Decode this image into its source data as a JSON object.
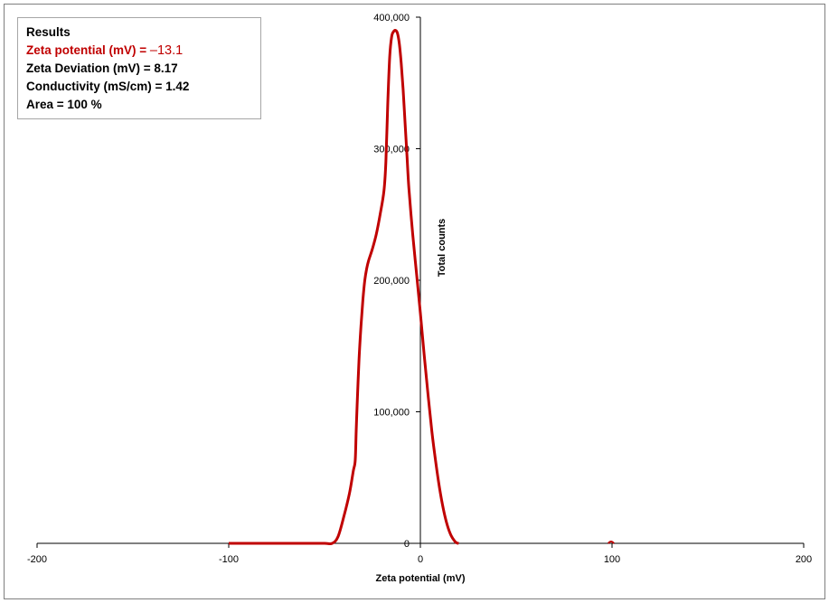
{
  "results": {
    "heading": "Results",
    "zeta_label": "Zeta potential (mV) = ",
    "zeta_value": "–13.1",
    "deviation": "Zeta Deviation (mV) = 8.17",
    "conductivity": "Conductivity (mS/cm) = 1.42",
    "area": "Area = 100 %"
  },
  "colors": {
    "series": "#c00000",
    "axis": "#000000"
  },
  "chart_data": {
    "type": "line",
    "title": "",
    "xlabel": "Zeta potential (mV)",
    "ylabel": "Total counts",
    "xlim": [
      -200,
      200
    ],
    "ylim": [
      0,
      400000
    ],
    "x_ticks": [
      -200,
      -100,
      0,
      100,
      200
    ],
    "x_tick_labels": [
      "-200",
      "-100",
      "0",
      "100",
      "200"
    ],
    "y_ticks": [
      0,
      100000,
      200000,
      300000,
      400000
    ],
    "y_tick_labels": [
      "0",
      "100,000",
      "200,000",
      "300,000",
      "400,000"
    ],
    "grid": false,
    "legend": "none",
    "series": [
      {
        "x": [
          -100,
          -80,
          -60,
          -50,
          -46,
          -43,
          -40,
          -37,
          -35,
          -34,
          -33.5,
          -33,
          -32,
          -31,
          -30,
          -29,
          -28,
          -27,
          -25,
          -23,
          -21,
          -19,
          -18,
          -17,
          -16,
          -15,
          -14,
          -13,
          -12,
          -11,
          -10,
          -9,
          -8,
          -7,
          -6,
          -4,
          -2,
          0,
          2,
          4,
          6,
          8,
          10,
          12,
          14,
          16,
          18,
          19,
          20
        ],
        "y": [
          0,
          0,
          0,
          0,
          0,
          5000,
          20000,
          38000,
          55000,
          63000,
          85000,
          105000,
          140000,
          165000,
          185000,
          200000,
          209000,
          215000,
          224000,
          235000,
          250000,
          268000,
          290000,
          335000,
          370000,
          385000,
          389000,
          390000,
          388000,
          380000,
          365000,
          345000,
          320000,
          295000,
          270000,
          235000,
          205000,
          175000,
          143000,
          113000,
          85000,
          62000,
          42000,
          26000,
          14000,
          6000,
          1500,
          300,
          0
        ]
      },
      {
        "x": [
          98,
          99,
          100,
          101
        ],
        "y": [
          0,
          1200,
          1200,
          0
        ]
      }
    ]
  }
}
